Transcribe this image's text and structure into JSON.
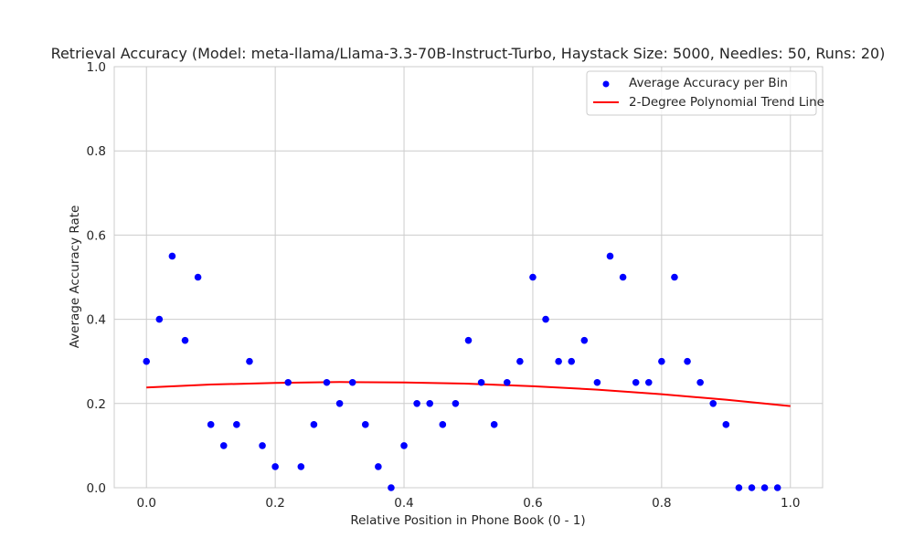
{
  "chart_data": {
    "type": "scatter",
    "title": "Retrieval Accuracy (Model: meta-llama/Llama-3.3-70B-Instruct-Turbo, Haystack Size: 5000, Needles: 50, Runs: 20)",
    "xlabel": "Relative Position in Phone Book (0 - 1)",
    "ylabel": "Average Accuracy Rate",
    "xlim": [
      -0.05,
      1.05
    ],
    "ylim": [
      0,
      1.0
    ],
    "xticks": [
      0.0,
      0.2,
      0.4,
      0.6,
      0.8,
      1.0
    ],
    "xtick_labels": [
      "0.0",
      "0.2",
      "0.4",
      "0.6",
      "0.8",
      "1.0"
    ],
    "yticks": [
      0.0,
      0.2,
      0.4,
      0.6,
      0.8,
      1.0
    ],
    "ytick_labels": [
      "0.0",
      "0.2",
      "0.4",
      "0.6",
      "0.8",
      "1.0"
    ],
    "grid": true,
    "legend_position": "top-right",
    "series": [
      {
        "name": "Average Accuracy per Bin",
        "kind": "scatter",
        "color": "#0000ff",
        "x": [
          0.0,
          0.02,
          0.04,
          0.06,
          0.08,
          0.1,
          0.12,
          0.14,
          0.16,
          0.18,
          0.2,
          0.22,
          0.24,
          0.26,
          0.28,
          0.3,
          0.32,
          0.34,
          0.36,
          0.38,
          0.4,
          0.42,
          0.44,
          0.46,
          0.48,
          0.5,
          0.52,
          0.54,
          0.56,
          0.58,
          0.6,
          0.62,
          0.64,
          0.66,
          0.68,
          0.7,
          0.72,
          0.74,
          0.76,
          0.78,
          0.8,
          0.82,
          0.84,
          0.86,
          0.88,
          0.9,
          0.92,
          0.94,
          0.96,
          0.98
        ],
        "y": [
          0.3,
          0.4,
          0.55,
          0.35,
          0.5,
          0.15,
          0.1,
          0.15,
          0.3,
          0.1,
          0.05,
          0.25,
          0.05,
          0.15,
          0.25,
          0.2,
          0.25,
          0.15,
          0.05,
          0.0,
          0.1,
          0.2,
          0.2,
          0.15,
          0.2,
          0.35,
          0.25,
          0.15,
          0.25,
          0.3,
          0.5,
          0.4,
          0.3,
          0.3,
          0.35,
          0.25,
          0.55,
          0.5,
          0.25,
          0.25,
          0.3,
          0.5,
          0.3,
          0.25,
          0.2,
          0.15,
          0.0,
          0.0,
          0.0,
          0.0
        ]
      },
      {
        "name": "2-Degree Polynomial Trend Line",
        "kind": "line",
        "color": "#ff0000",
        "x": [
          0.0,
          0.1,
          0.2,
          0.3,
          0.4,
          0.5,
          0.6,
          0.7,
          0.8,
          0.9,
          1.0
        ],
        "y": [
          0.238,
          0.245,
          0.249,
          0.251,
          0.25,
          0.247,
          0.241,
          0.233,
          0.222,
          0.209,
          0.194
        ]
      }
    ]
  }
}
